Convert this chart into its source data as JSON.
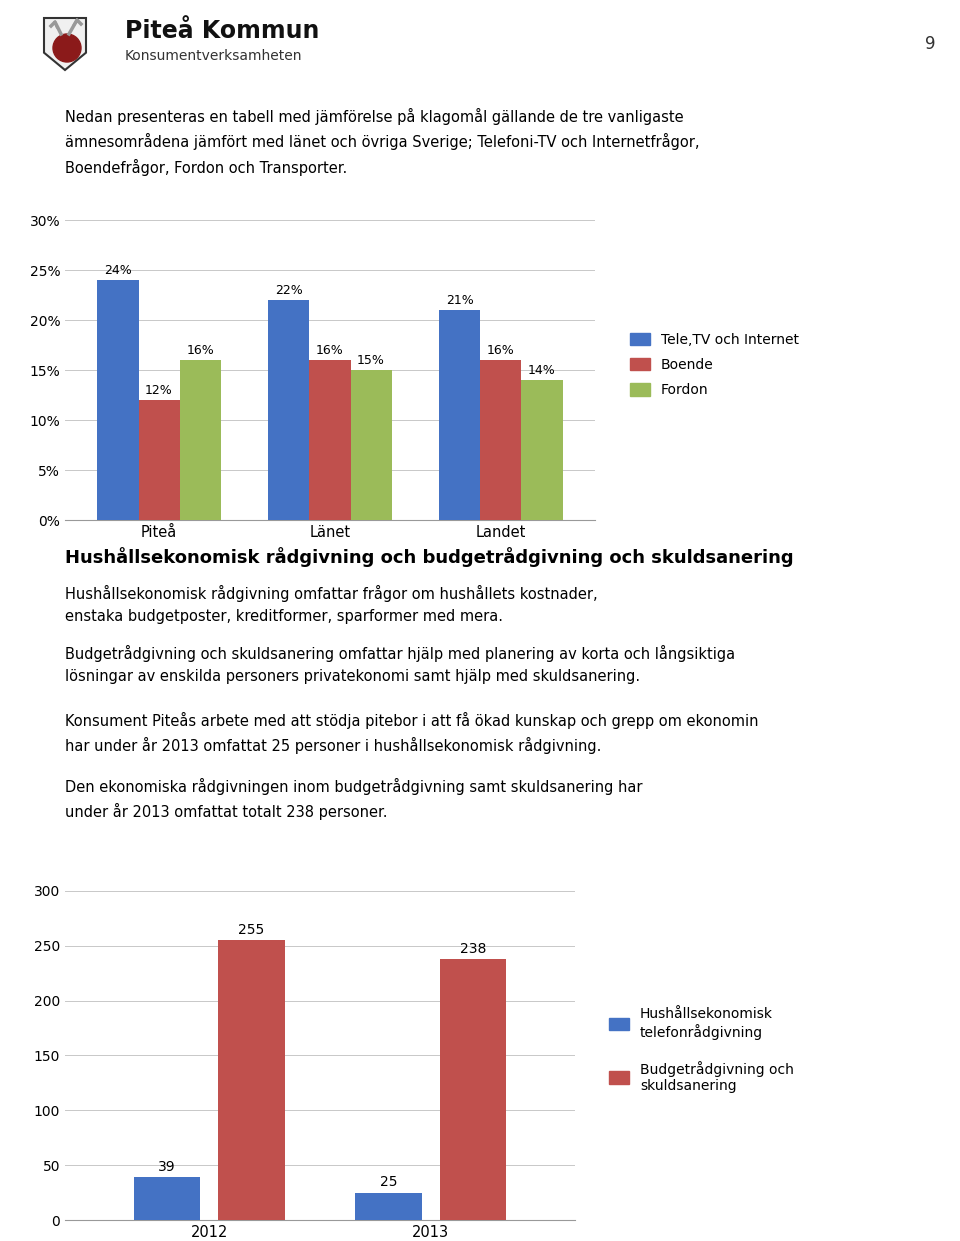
{
  "page_number": "9",
  "intro_text": "Nedan presenteras en tabell med jämförelse på klagomål gällande de tre vanligaste\nämnesområdena jämfört med länet och övriga Sverige; Telefoni-TV och Internetfrågor,\nBoendefrågor, Fordon och Transporter.",
  "chart1": {
    "categories": [
      "Piteå",
      "Länet",
      "Landet"
    ],
    "series": {
      "Tele,TV och Internet": [
        0.24,
        0.22,
        0.21
      ],
      "Boende": [
        0.12,
        0.16,
        0.16
      ],
      "Fordon": [
        0.16,
        0.15,
        0.14
      ]
    },
    "colors": {
      "Tele,TV och Internet": "#4472C4",
      "Boende": "#C0504D",
      "Fordon": "#9BBB59"
    },
    "ylim": [
      0,
      0.31
    ],
    "yticks": [
      0.0,
      0.05,
      0.1,
      0.15,
      0.2,
      0.25,
      0.3
    ],
    "ytick_labels": [
      "0%",
      "5%",
      "10%",
      "15%",
      "20%",
      "25%",
      "30%"
    ]
  },
  "section_title": "Hushållsekonomisk rådgivning och budgetrådgivning och skuldsanering",
  "section_text1": "Hushållsekonomisk rådgivning omfattar frågor om hushållets kostnader,\nenstaka budgetposter, kreditformer, sparformer med mera.",
  "section_text2": "Budgetrådgivning och skuldsanering omfattar hjälp med planering av korta och långsiktiga\nlösningar av enskilda personers privatekonomi samt hjälp med skuldsanering.",
  "section_text3": "Konsument Piteås arbete med att stödja pitebor i att få ökad kunskap och grepp om ekonomin\nhar under år 2013 omfattat 25 personer i hushållsekonomisk rådgivning.",
  "section_text4": "Den ekonomiska rådgivningen inom budgetrådgivning samt skuldsanering har\nunder år 2013 omfattat totalt 238 personer.",
  "chart2": {
    "categories": [
      "2012",
      "2013"
    ],
    "series": {
      "Hushållsekonomisk\ntelefonrådgivning": [
        39,
        25
      ],
      "Budgetrådgivning och\nskuldsanering": [
        255,
        238
      ]
    },
    "series_values": {
      "Hushållsekonomisk telefonrådgivning": [
        39,
        25
      ],
      "Budgetrådgivning och skuldsanering": [
        255,
        238
      ]
    },
    "colors": {
      "Hushållsekonomisk telefonrådgivning": "#4472C4",
      "Budgetrådgivning och skuldsanering": "#C0504D"
    },
    "ylim": [
      0,
      310
    ],
    "yticks": [
      0,
      50,
      100,
      150,
      200,
      250,
      300
    ]
  },
  "background_color": "#FFFFFF",
  "text_color": "#000000",
  "grid_color": "#C8C8C8",
  "separator_color": "#8B0000",
  "company_name": "Piteå Kommun",
  "dept_name": "Konsumentverksamheten"
}
